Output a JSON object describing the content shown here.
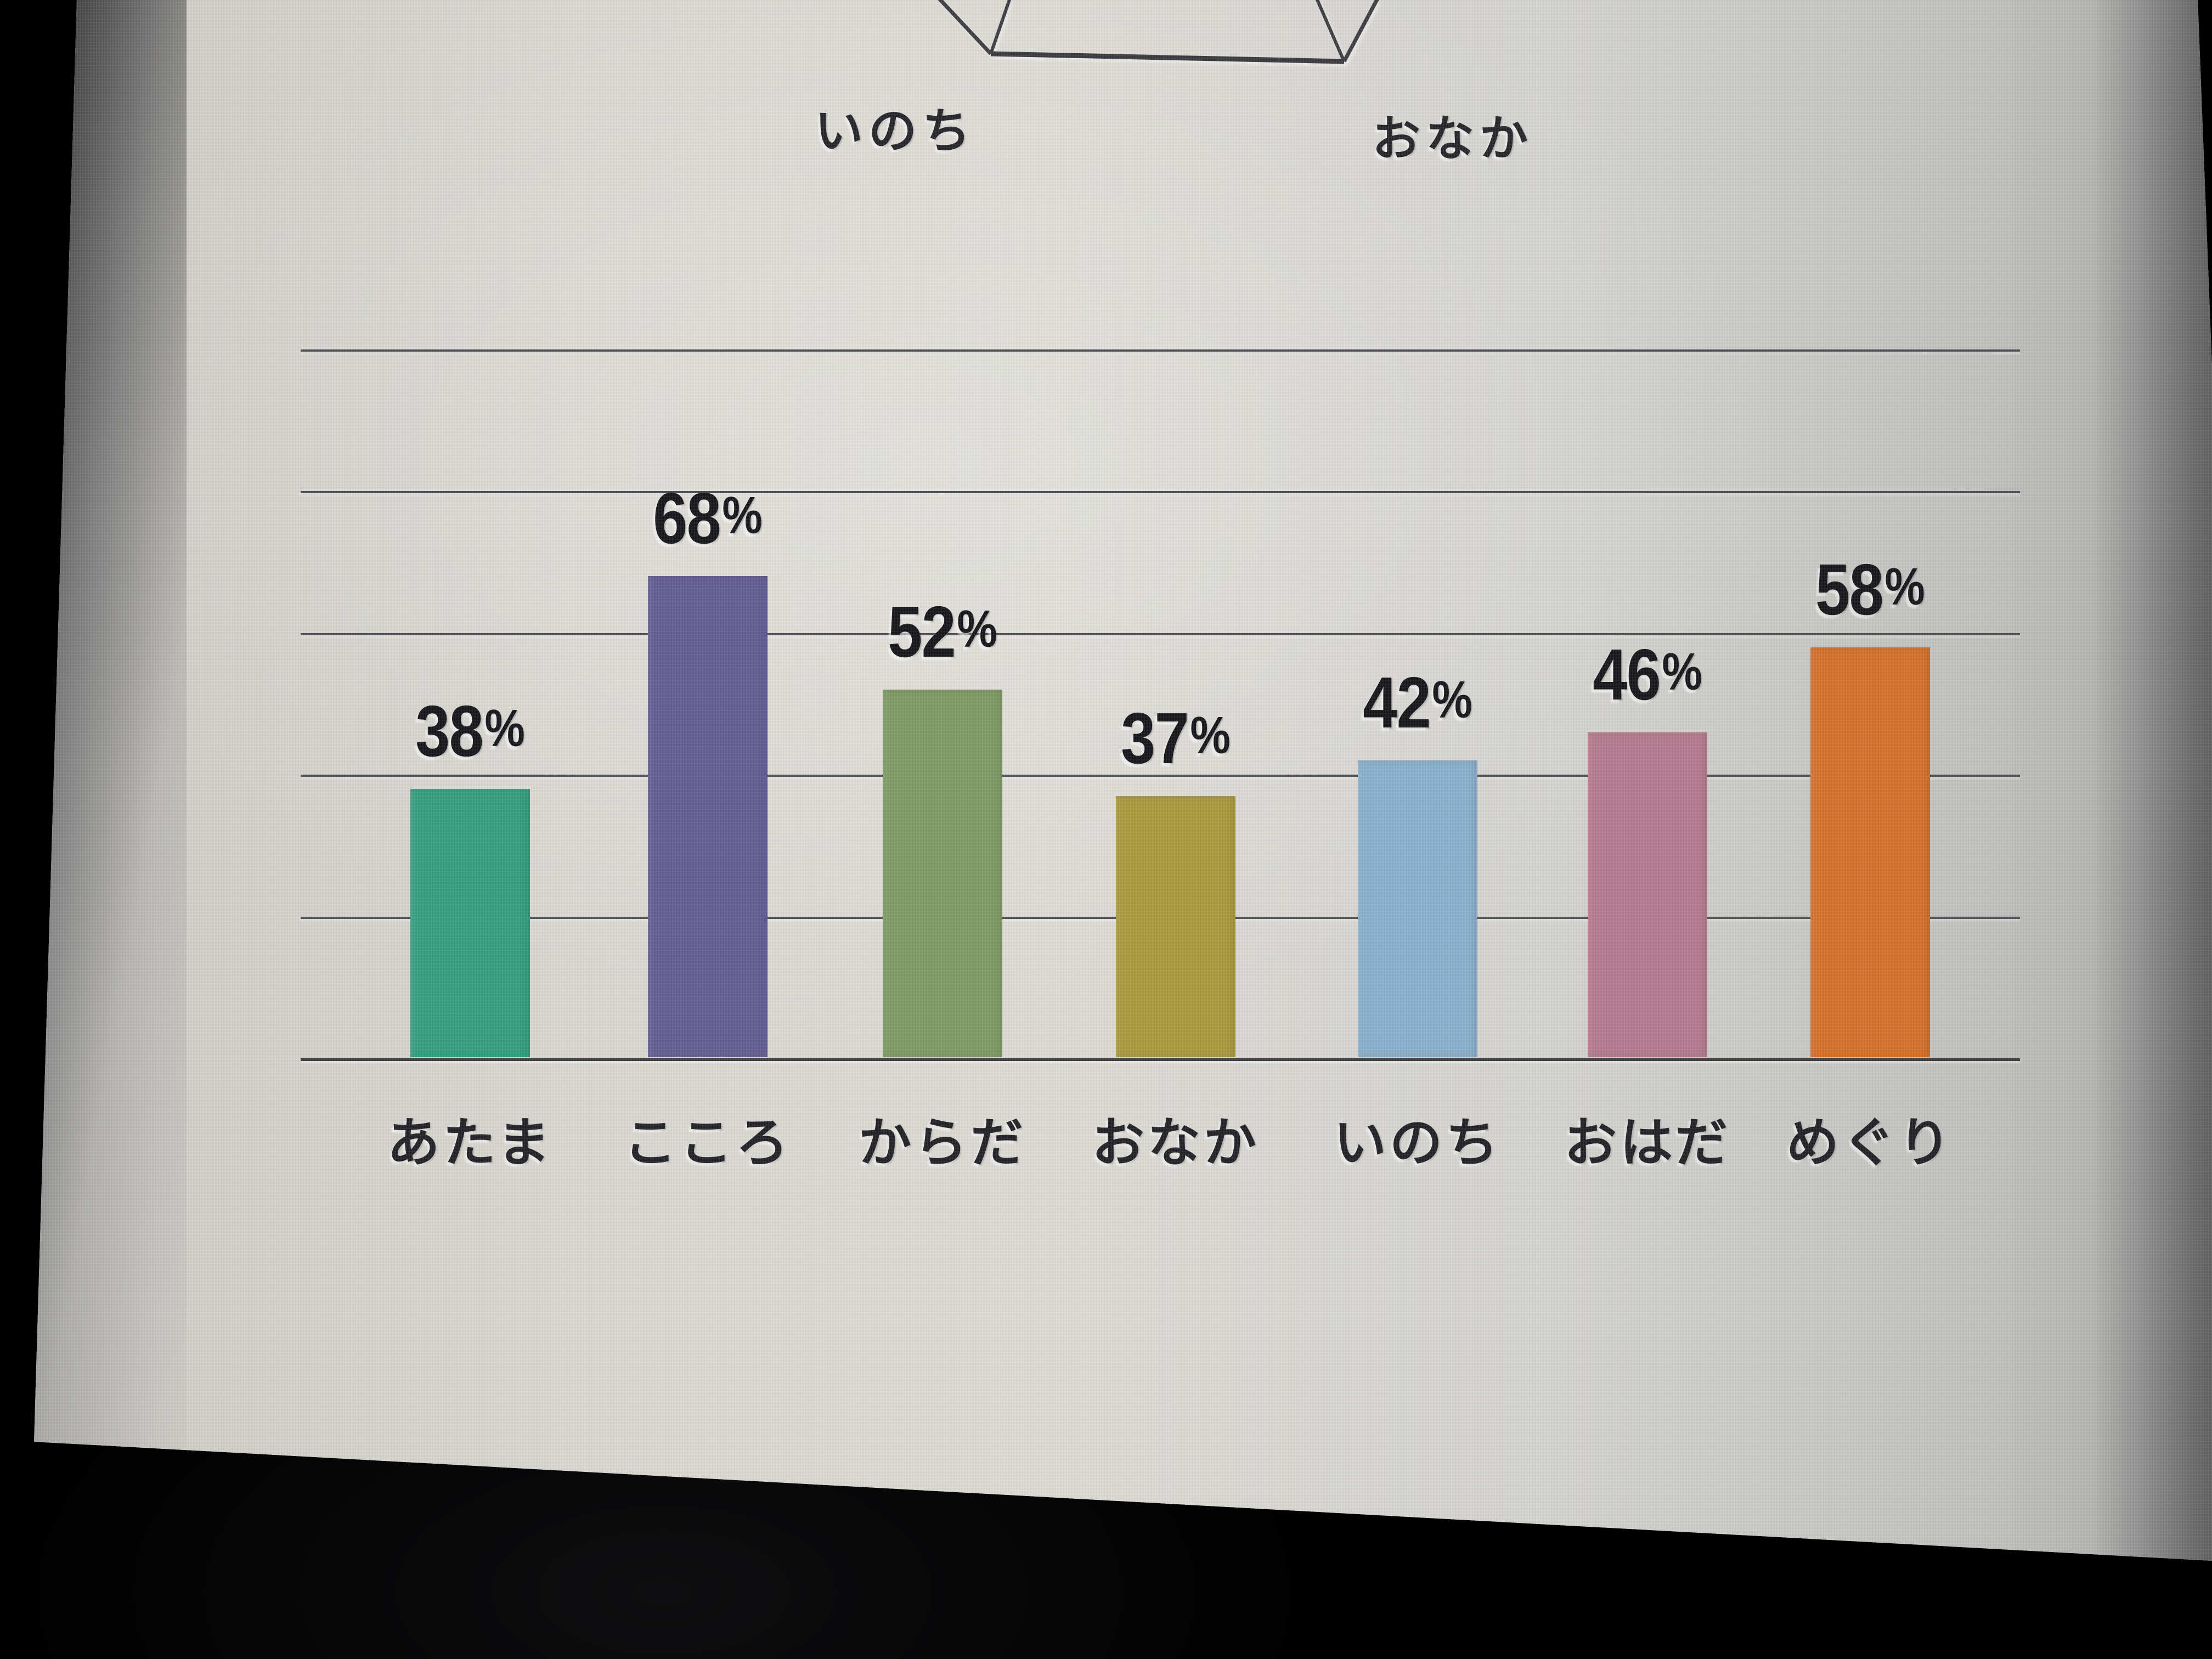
{
  "radar_fragment": {
    "left_vertex_label": "いのち",
    "right_vertex_label": "おなか"
  },
  "chart_data": {
    "type": "bar",
    "categories": [
      "あたま",
      "こころ",
      "からだ",
      "おなか",
      "いのち",
      "おはだ",
      "めぐり"
    ],
    "values": [
      38,
      68,
      52,
      37,
      42,
      46,
      58
    ],
    "value_labels": [
      "38%",
      "68%",
      "52%",
      "37%",
      "42%",
      "46%",
      "58%"
    ],
    "percent_sign": "%",
    "bar_colors": [
      "#35a07f",
      "#645e95",
      "#7f9c66",
      "#ad9b3e",
      "#8bb1ce",
      "#b77b91",
      "#d5722d"
    ],
    "title": "",
    "xlabel": "",
    "ylabel": "",
    "ylim": [
      0,
      100
    ],
    "gridline_percents": [
      0,
      20,
      40,
      60,
      80,
      100
    ],
    "grid": "horizontal",
    "legend": "none",
    "value_label_position": "above-bar",
    "background": "#d9d7d1"
  }
}
